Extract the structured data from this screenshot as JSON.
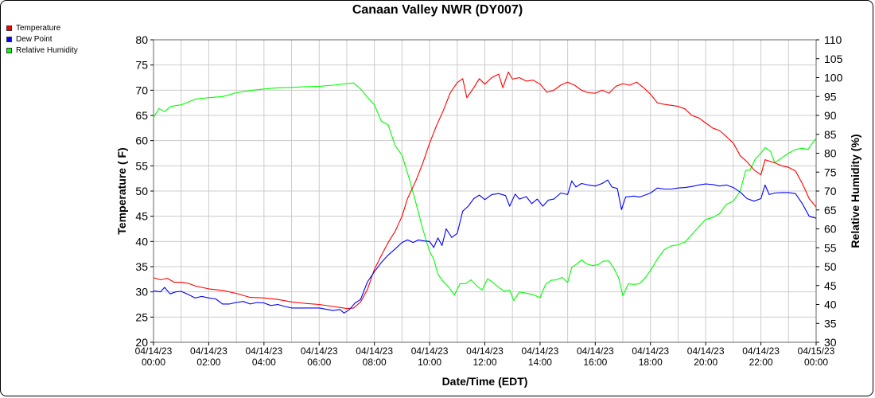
{
  "chart_data": {
    "type": "line",
    "title": "Canaan Valley NWR (DY007)",
    "xlabel": "Date/Time (EDT)",
    "ylabel": "Temperature ( F)",
    "y2label": "Relative Humidity (%)",
    "ylim": [
      20,
      80
    ],
    "y2lim": [
      30,
      110
    ],
    "grid": true,
    "legend_position": "top-left",
    "x_ticks": [
      {
        "hour": 0,
        "date": "04/14/23",
        "time": "00:00"
      },
      {
        "hour": 2,
        "date": "04/14/23",
        "time": "02:00"
      },
      {
        "hour": 4,
        "date": "04/14/23",
        "time": "04:00"
      },
      {
        "hour": 6,
        "date": "04/14/23",
        "time": "06:00"
      },
      {
        "hour": 8,
        "date": "04/14/23",
        "time": "08:00"
      },
      {
        "hour": 10,
        "date": "04/14/23",
        "time": "10:00"
      },
      {
        "hour": 12,
        "date": "04/14/23",
        "time": "12:00"
      },
      {
        "hour": 14,
        "date": "04/14/23",
        "time": "14:00"
      },
      {
        "hour": 16,
        "date": "04/14/23",
        "time": "16:00"
      },
      {
        "hour": 18,
        "date": "04/14/23",
        "time": "18:00"
      },
      {
        "hour": 20,
        "date": "04/14/23",
        "time": "20:00"
      },
      {
        "hour": 22,
        "date": "04/14/23",
        "time": "22:00"
      },
      {
        "hour": 24,
        "date": "04/15/23",
        "time": "00:00"
      }
    ],
    "y_ticks": [
      20,
      25,
      30,
      35,
      40,
      45,
      50,
      55,
      60,
      65,
      70,
      75,
      80
    ],
    "y2_ticks": [
      30,
      35,
      40,
      45,
      50,
      55,
      60,
      65,
      70,
      75,
      80,
      85,
      90,
      95,
      100,
      105,
      110
    ],
    "x_unit": "hours since 04/14/23 00:00",
    "series": [
      {
        "name": "Temperature",
        "color": "#ff0000",
        "axis": "left",
        "points": [
          [
            0,
            32.8
          ],
          [
            0.25,
            32.4
          ],
          [
            0.5,
            32.7
          ],
          [
            0.75,
            31.9
          ],
          [
            1,
            31.9
          ],
          [
            1.25,
            31.7
          ],
          [
            1.5,
            31.2
          ],
          [
            2,
            30.6
          ],
          [
            2.5,
            30.3
          ],
          [
            3,
            29.7
          ],
          [
            3.5,
            28.9
          ],
          [
            4,
            28.8
          ],
          [
            4.5,
            28.5
          ],
          [
            5,
            28.0
          ],
          [
            5.5,
            27.7
          ],
          [
            6,
            27.5
          ],
          [
            6.5,
            27.1
          ],
          [
            7,
            26.7
          ],
          [
            7.25,
            26.8
          ],
          [
            7.5,
            28.0
          ],
          [
            7.75,
            30.5
          ],
          [
            8,
            34.5
          ],
          [
            8.25,
            37.2
          ],
          [
            8.5,
            39.8
          ],
          [
            8.75,
            42.0
          ],
          [
            9,
            45.0
          ],
          [
            9.2,
            48.5
          ],
          [
            9.5,
            52.0
          ],
          [
            9.75,
            55.5
          ],
          [
            10,
            59.5
          ],
          [
            10.25,
            63.0
          ],
          [
            10.5,
            66.0
          ],
          [
            10.75,
            69.5
          ],
          [
            11,
            71.5
          ],
          [
            11.2,
            72.3
          ],
          [
            11.35,
            68.5
          ],
          [
            11.6,
            70.5
          ],
          [
            11.8,
            72.3
          ],
          [
            12,
            71.2
          ],
          [
            12.25,
            72.5
          ],
          [
            12.5,
            73.2
          ],
          [
            12.65,
            70.5
          ],
          [
            12.85,
            73.6
          ],
          [
            13,
            72.2
          ],
          [
            13.25,
            72.5
          ],
          [
            13.5,
            71.8
          ],
          [
            13.75,
            72.0
          ],
          [
            14,
            71.2
          ],
          [
            14.25,
            69.6
          ],
          [
            14.5,
            70.0
          ],
          [
            14.75,
            71.0
          ],
          [
            15,
            71.6
          ],
          [
            15.25,
            71.0
          ],
          [
            15.5,
            70.0
          ],
          [
            15.75,
            69.5
          ],
          [
            16,
            69.4
          ],
          [
            16.25,
            70.0
          ],
          [
            16.5,
            69.4
          ],
          [
            16.75,
            70.8
          ],
          [
            17,
            71.3
          ],
          [
            17.25,
            71.0
          ],
          [
            17.5,
            71.6
          ],
          [
            17.75,
            70.5
          ],
          [
            18,
            69.2
          ],
          [
            18.25,
            67.5
          ],
          [
            18.5,
            67.2
          ],
          [
            19,
            66.8
          ],
          [
            19.25,
            66.3
          ],
          [
            19.5,
            65.0
          ],
          [
            19.75,
            64.5
          ],
          [
            20,
            63.5
          ],
          [
            20.25,
            62.5
          ],
          [
            20.5,
            62.0
          ],
          [
            20.75,
            60.8
          ],
          [
            21,
            59.5
          ],
          [
            21.25,
            57.0
          ],
          [
            21.5,
            55.8
          ],
          [
            21.75,
            54.2
          ],
          [
            22,
            53.2
          ],
          [
            22.15,
            56.2
          ],
          [
            22.5,
            55.6
          ],
          [
            22.75,
            55.0
          ],
          [
            23,
            54.7
          ],
          [
            23.25,
            54.0
          ],
          [
            23.5,
            51.5
          ],
          [
            23.75,
            48.5
          ],
          [
            24,
            46.8
          ]
        ]
      },
      {
        "name": "Dew Point",
        "color": "#0000ff",
        "axis": "left",
        "points": [
          [
            0,
            30.2
          ],
          [
            0.25,
            30.0
          ],
          [
            0.4,
            30.9
          ],
          [
            0.6,
            29.6
          ],
          [
            0.8,
            30.0
          ],
          [
            1,
            30.1
          ],
          [
            1.25,
            29.5
          ],
          [
            1.5,
            28.8
          ],
          [
            1.75,
            29.1
          ],
          [
            2,
            28.8
          ],
          [
            2.25,
            28.6
          ],
          [
            2.5,
            27.6
          ],
          [
            2.75,
            27.6
          ],
          [
            3,
            27.9
          ],
          [
            3.25,
            28.1
          ],
          [
            3.5,
            27.6
          ],
          [
            3.75,
            27.9
          ],
          [
            4,
            27.8
          ],
          [
            4.25,
            27.3
          ],
          [
            4.5,
            27.5
          ],
          [
            4.75,
            27.1
          ],
          [
            5,
            26.8
          ],
          [
            5.5,
            26.8
          ],
          [
            6,
            26.8
          ],
          [
            6.5,
            26.3
          ],
          [
            6.75,
            26.5
          ],
          [
            6.9,
            25.8
          ],
          [
            7.1,
            26.5
          ],
          [
            7.3,
            27.8
          ],
          [
            7.5,
            28.5
          ],
          [
            7.75,
            32.0
          ],
          [
            8,
            34.0
          ],
          [
            8.25,
            35.8
          ],
          [
            8.5,
            37.3
          ],
          [
            8.75,
            38.5
          ],
          [
            9,
            39.8
          ],
          [
            9.2,
            40.3
          ],
          [
            9.4,
            39.8
          ],
          [
            9.6,
            40.3
          ],
          [
            9.8,
            40.1
          ],
          [
            10,
            40.0
          ],
          [
            10.15,
            38.8
          ],
          [
            10.3,
            40.7
          ],
          [
            10.45,
            39.2
          ],
          [
            10.6,
            42.5
          ],
          [
            10.8,
            40.8
          ],
          [
            11,
            41.6
          ],
          [
            11.2,
            46.0
          ],
          [
            11.4,
            47.0
          ],
          [
            11.6,
            48.5
          ],
          [
            11.8,
            49.2
          ],
          [
            12,
            48.3
          ],
          [
            12.25,
            49.3
          ],
          [
            12.5,
            49.5
          ],
          [
            12.75,
            49.1
          ],
          [
            12.9,
            47.0
          ],
          [
            13.1,
            49.4
          ],
          [
            13.25,
            48.4
          ],
          [
            13.5,
            48.9
          ],
          [
            13.7,
            47.5
          ],
          [
            13.9,
            48.4
          ],
          [
            14.1,
            47.0
          ],
          [
            14.3,
            48.2
          ],
          [
            14.5,
            48.4
          ],
          [
            14.75,
            49.6
          ],
          [
            15,
            49.3
          ],
          [
            15.15,
            52.0
          ],
          [
            15.3,
            50.8
          ],
          [
            15.5,
            51.5
          ],
          [
            15.75,
            51.2
          ],
          [
            16,
            51.0
          ],
          [
            16.25,
            51.5
          ],
          [
            16.45,
            52.2
          ],
          [
            16.6,
            50.8
          ],
          [
            16.8,
            50.5
          ],
          [
            16.95,
            46.3
          ],
          [
            17.1,
            48.8
          ],
          [
            17.4,
            49.0
          ],
          [
            17.6,
            48.8
          ],
          [
            17.8,
            49.2
          ],
          [
            18,
            49.6
          ],
          [
            18.25,
            50.6
          ],
          [
            18.5,
            50.4
          ],
          [
            18.75,
            50.4
          ],
          [
            19,
            50.6
          ],
          [
            19.25,
            50.7
          ],
          [
            19.5,
            50.9
          ],
          [
            19.75,
            51.2
          ],
          [
            20,
            51.4
          ],
          [
            20.25,
            51.3
          ],
          [
            20.5,
            51.0
          ],
          [
            20.75,
            51.2
          ],
          [
            21,
            50.7
          ],
          [
            21.25,
            49.8
          ],
          [
            21.5,
            48.5
          ],
          [
            21.75,
            48.0
          ],
          [
            22,
            48.5
          ],
          [
            22.15,
            51.2
          ],
          [
            22.3,
            49.3
          ],
          [
            22.5,
            49.6
          ],
          [
            22.75,
            49.7
          ],
          [
            23,
            49.7
          ],
          [
            23.25,
            49.5
          ],
          [
            23.5,
            47.5
          ],
          [
            23.75,
            45.0
          ],
          [
            24,
            44.6
          ]
        ]
      },
      {
        "name": "Relative Humidity",
        "color": "#00ff00",
        "axis": "right",
        "points": [
          [
            0,
            89.5
          ],
          [
            0.2,
            91.8
          ],
          [
            0.4,
            91.0
          ],
          [
            0.6,
            92.3
          ],
          [
            0.8,
            92.6
          ],
          [
            1,
            92.8
          ],
          [
            1.25,
            93.5
          ],
          [
            1.5,
            94.3
          ],
          [
            2,
            94.7
          ],
          [
            2.5,
            95.0
          ],
          [
            3,
            96.0
          ],
          [
            3.5,
            96.6
          ],
          [
            4,
            97.0
          ],
          [
            4.5,
            97.3
          ],
          [
            5,
            97.4
          ],
          [
            5.5,
            97.6
          ],
          [
            6,
            97.7
          ],
          [
            6.5,
            98.0
          ],
          [
            7,
            98.4
          ],
          [
            7.25,
            98.6
          ],
          [
            7.5,
            97.0
          ],
          [
            7.75,
            94.8
          ],
          [
            8,
            92.8
          ],
          [
            8.25,
            88.5
          ],
          [
            8.5,
            87.5
          ],
          [
            8.75,
            82.0
          ],
          [
            9,
            79.5
          ],
          [
            9.25,
            73.5
          ],
          [
            9.5,
            67.0
          ],
          [
            9.75,
            60.0
          ],
          [
            10,
            54.0
          ],
          [
            10.15,
            52.0
          ],
          [
            10.3,
            48.0
          ],
          [
            10.5,
            46.0
          ],
          [
            10.7,
            44.5
          ],
          [
            10.9,
            42.5
          ],
          [
            11.1,
            45.5
          ],
          [
            11.3,
            45.5
          ],
          [
            11.5,
            46.5
          ],
          [
            11.7,
            45.0
          ],
          [
            11.9,
            43.8
          ],
          [
            12.1,
            46.8
          ],
          [
            12.3,
            45.8
          ],
          [
            12.5,
            44.5
          ],
          [
            12.7,
            43.5
          ],
          [
            12.9,
            43.8
          ],
          [
            13.05,
            41.0
          ],
          [
            13.25,
            43.3
          ],
          [
            13.5,
            43.0
          ],
          [
            13.75,
            42.6
          ],
          [
            14,
            41.8
          ],
          [
            14.2,
            45.3
          ],
          [
            14.4,
            46.4
          ],
          [
            14.6,
            46.5
          ],
          [
            14.8,
            47.2
          ],
          [
            15,
            45.8
          ],
          [
            15.15,
            49.8
          ],
          [
            15.35,
            50.8
          ],
          [
            15.5,
            51.8
          ],
          [
            15.7,
            50.7
          ],
          [
            15.9,
            50.3
          ],
          [
            16.1,
            50.5
          ],
          [
            16.3,
            51.5
          ],
          [
            16.5,
            51.5
          ],
          [
            16.7,
            49.2
          ],
          [
            16.85,
            47.0
          ],
          [
            17,
            42.3
          ],
          [
            17.2,
            45.5
          ],
          [
            17.4,
            45.3
          ],
          [
            17.6,
            45.5
          ],
          [
            17.8,
            47.0
          ],
          [
            18,
            49.0
          ],
          [
            18.25,
            52.0
          ],
          [
            18.5,
            54.5
          ],
          [
            18.75,
            55.5
          ],
          [
            19,
            55.8
          ],
          [
            19.25,
            56.5
          ],
          [
            19.5,
            58.5
          ],
          [
            19.75,
            60.5
          ],
          [
            20,
            62.5
          ],
          [
            20.25,
            63.0
          ],
          [
            20.5,
            64.0
          ],
          [
            20.75,
            66.5
          ],
          [
            21,
            67.3
          ],
          [
            21.25,
            70.0
          ],
          [
            21.45,
            75.5
          ],
          [
            21.6,
            75.5
          ],
          [
            21.8,
            78.5
          ],
          [
            22,
            80.0
          ],
          [
            22.15,
            81.5
          ],
          [
            22.35,
            80.5
          ],
          [
            22.5,
            77.5
          ],
          [
            22.7,
            78.5
          ],
          [
            23,
            80.0
          ],
          [
            23.25,
            81.0
          ],
          [
            23.5,
            81.3
          ],
          [
            23.7,
            81.0
          ],
          [
            24,
            84.0
          ]
        ]
      }
    ]
  }
}
